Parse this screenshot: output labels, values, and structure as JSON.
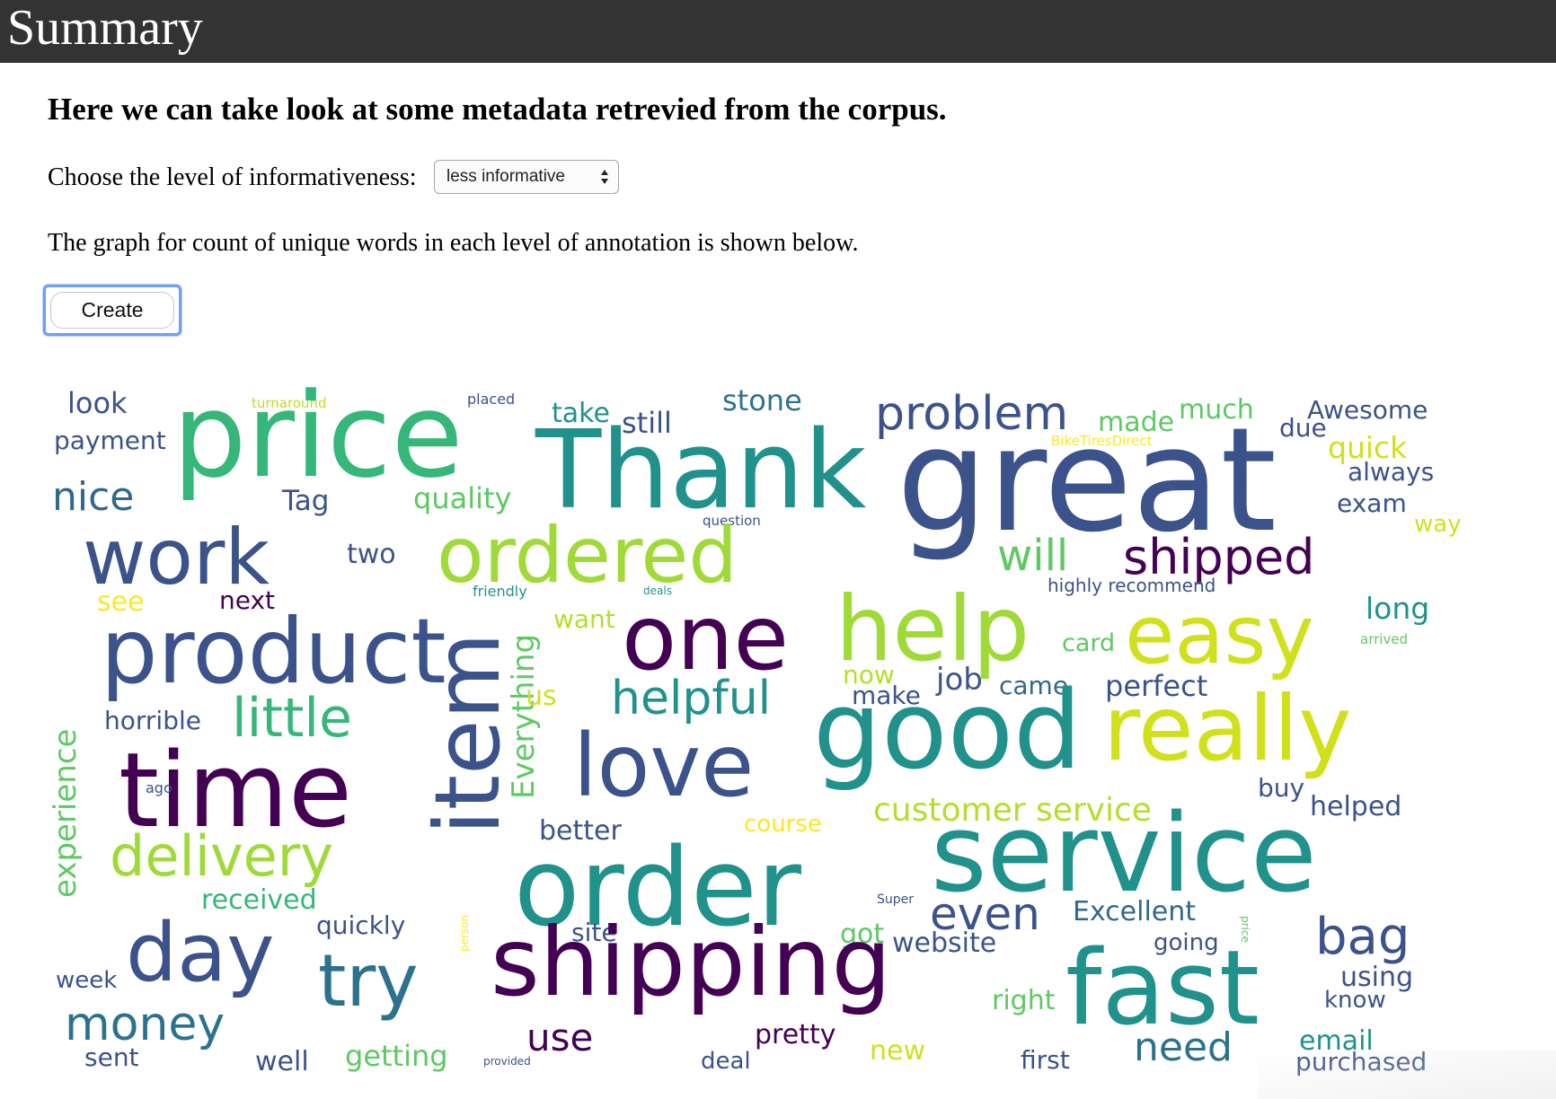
{
  "topbar": {
    "title": "Summary"
  },
  "heading": "Here we can take look at some metadata retrevied from the corpus.",
  "informativeness": {
    "label": "Choose the level of informativeness:",
    "selected": "less informative"
  },
  "graph_note": "The graph for count of unique words in each level of annotation is shown below.",
  "create_button": {
    "label": "Create"
  },
  "wordcloud": {
    "palette": [
      "#440154",
      "#3b528b",
      "#21918c",
      "#5ec962",
      "#fde725"
    ],
    "words": [
      {
        "text": "look",
        "color": "#3b528b"
      },
      {
        "text": "turnaround",
        "color": "#bddf26"
      },
      {
        "text": "placed",
        "color": "#3b528b"
      },
      {
        "text": "take",
        "color": "#21918c"
      },
      {
        "text": "stone",
        "color": "#2c728e"
      },
      {
        "text": "problem",
        "color": "#3b528b"
      },
      {
        "text": "made",
        "color": "#5ec962"
      },
      {
        "text": "much",
        "color": "#5ec962"
      },
      {
        "text": "Awesome",
        "color": "#3b528b"
      },
      {
        "text": "payment",
        "color": "#3b528b"
      },
      {
        "text": "price",
        "color": "#35b779"
      },
      {
        "text": "still",
        "color": "#3b528b"
      },
      {
        "text": "Thank",
        "color": "#21918c"
      },
      {
        "text": "BikeTiresDirect",
        "color": "#fde725"
      },
      {
        "text": "due",
        "color": "#3b528b"
      },
      {
        "text": "quick",
        "color": "#d0e11c"
      },
      {
        "text": "great",
        "color": "#3b528b"
      },
      {
        "text": "always",
        "color": "#3b528b"
      },
      {
        "text": "nice",
        "color": "#31688e"
      },
      {
        "text": "Tag",
        "color": "#3b528b"
      },
      {
        "text": "quality",
        "color": "#5ec962"
      },
      {
        "text": "exam",
        "color": "#3b528b"
      },
      {
        "text": "question",
        "color": "#3b528b"
      },
      {
        "text": "way",
        "color": "#d0e11c"
      },
      {
        "text": "work",
        "color": "#3b528b"
      },
      {
        "text": "two",
        "color": "#3b528b"
      },
      {
        "text": "ordered",
        "color": "#a0da39"
      },
      {
        "text": "will",
        "color": "#5ec962"
      },
      {
        "text": "shipped",
        "color": "#440154"
      },
      {
        "text": "highly recommend",
        "color": "#3b528b"
      },
      {
        "text": "friendly",
        "color": "#21918c"
      },
      {
        "text": "deals",
        "color": "#21918c"
      },
      {
        "text": "see",
        "color": "#fde725"
      },
      {
        "text": "next",
        "color": "#440154"
      },
      {
        "text": "long",
        "color": "#21918c"
      },
      {
        "text": "want",
        "color": "#b5de2b"
      },
      {
        "text": "product",
        "color": "#3b528b"
      },
      {
        "text": "one",
        "color": "#440154"
      },
      {
        "text": "help",
        "color": "#a0da39"
      },
      {
        "text": "easy",
        "color": "#d0e11c"
      },
      {
        "text": "card",
        "color": "#5ec962"
      },
      {
        "text": "arrived",
        "color": "#5ec962"
      },
      {
        "text": "Everything",
        "color": "#5ec962"
      },
      {
        "text": "now",
        "color": "#b5de2b"
      },
      {
        "text": "job",
        "color": "#3b528b"
      },
      {
        "text": "came",
        "color": "#31688e"
      },
      {
        "text": "perfect",
        "color": "#3b528b"
      },
      {
        "text": "us",
        "color": "#d0e11c"
      },
      {
        "text": "helpful",
        "color": "#21918c"
      },
      {
        "text": "make",
        "color": "#3b528b"
      },
      {
        "text": "horrible",
        "color": "#3b528b"
      },
      {
        "text": "little",
        "color": "#35b779"
      },
      {
        "text": "experience",
        "color": "#5ec962"
      },
      {
        "text": "good",
        "color": "#21918c"
      },
      {
        "text": "really",
        "color": "#d0e11c"
      },
      {
        "text": "item",
        "color": "#3b528b"
      },
      {
        "text": "love",
        "color": "#3b528b"
      },
      {
        "text": "time",
        "color": "#440154"
      },
      {
        "text": "ago",
        "color": "#3b528b"
      },
      {
        "text": "buy",
        "color": "#3b528b"
      },
      {
        "text": "helped",
        "color": "#3b528b"
      },
      {
        "text": "customer service",
        "color": "#b5de2b"
      },
      {
        "text": "course",
        "color": "#fde725"
      },
      {
        "text": "better",
        "color": "#3b528b"
      },
      {
        "text": "delivery",
        "color": "#a0da39"
      },
      {
        "text": "order",
        "color": "#21918c"
      },
      {
        "text": "service",
        "color": "#21918c"
      },
      {
        "text": "received",
        "color": "#35b779"
      },
      {
        "text": "Super",
        "color": "#3b528b"
      },
      {
        "text": "even",
        "color": "#3b528b"
      },
      {
        "text": "Excellent",
        "color": "#31688e"
      },
      {
        "text": "quickly",
        "color": "#3b528b"
      },
      {
        "text": "person",
        "color": "#fde725"
      },
      {
        "text": "site",
        "color": "#3b528b"
      },
      {
        "text": "got",
        "color": "#5ec962"
      },
      {
        "text": "website",
        "color": "#3b528b"
      },
      {
        "text": "going",
        "color": "#3b528b"
      },
      {
        "text": "price",
        "color": "#5ec962"
      },
      {
        "text": "bag",
        "color": "#3b528b"
      },
      {
        "text": "day",
        "color": "#3b528b"
      },
      {
        "text": "week",
        "color": "#3b528b"
      },
      {
        "text": "try",
        "color": "#2c728e"
      },
      {
        "text": "shipping",
        "color": "#440154"
      },
      {
        "text": "fast",
        "color": "#21918c"
      },
      {
        "text": "using",
        "color": "#3b528b"
      },
      {
        "text": "right",
        "color": "#5ec962"
      },
      {
        "text": "know",
        "color": "#3b528b"
      },
      {
        "text": "money",
        "color": "#2c728e"
      },
      {
        "text": "use",
        "color": "#440154"
      },
      {
        "text": "pretty",
        "color": "#440154"
      },
      {
        "text": "need",
        "color": "#2c728e"
      },
      {
        "text": "email",
        "color": "#21918c"
      },
      {
        "text": "sent",
        "color": "#3b528b"
      },
      {
        "text": "well",
        "color": "#3b528b"
      },
      {
        "text": "getting",
        "color": "#5ec962"
      },
      {
        "text": "provided",
        "color": "#3b528b"
      },
      {
        "text": "deal",
        "color": "#3b528b"
      },
      {
        "text": "new",
        "color": "#d0e11c"
      },
      {
        "text": "first",
        "color": "#3b528b"
      },
      {
        "text": "purchased",
        "color": "#3b528b"
      }
    ]
  }
}
